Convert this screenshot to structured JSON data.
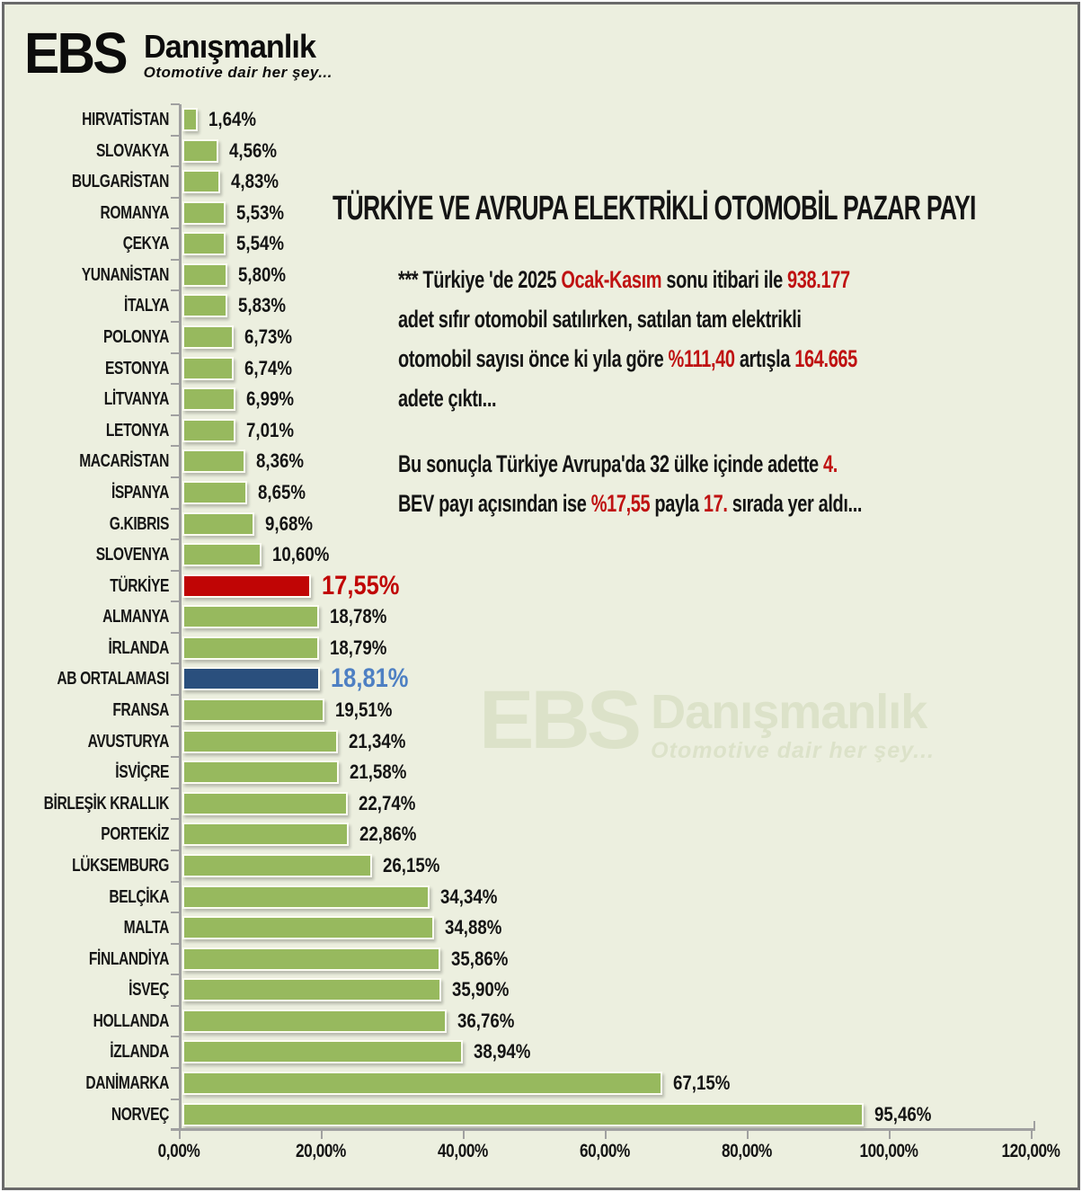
{
  "logo": {
    "mark": "EBS",
    "name": "Danışmanlık",
    "tagline": "Otomotive dair her şey..."
  },
  "title": "TÜRKİYE VE AVRUPA ELEKTRİKLİ OTOMOBİL PAZAR PAYI",
  "paragraphs": [
    {
      "lines": [
        [
          {
            "t": "*** Türkiye 'de 2025 "
          },
          {
            "t": "Ocak-Kasım",
            "red": true
          },
          {
            "t": " sonu itibari ile "
          },
          {
            "t": "938.177",
            "red": true
          }
        ],
        [
          {
            "t": "adet sıfır otomobil satılırken, satılan tam elektrikli"
          }
        ],
        [
          {
            "t": "otomobil sayısı önce ki yıla göre "
          },
          {
            "t": "%111,40",
            "red": true
          },
          {
            "t": " artışla "
          },
          {
            "t": "164.665",
            "red": true
          }
        ],
        [
          {
            "t": "adete çıktı..."
          }
        ]
      ]
    },
    {
      "lines": [
        [
          {
            "t": "Bu sonuçla Türkiye Avrupa'da 32 ülke içinde adette "
          },
          {
            "t": "4.",
            "red": true
          }
        ],
        [
          {
            "t": "BEV payı açısından ise "
          },
          {
            "t": "%17,55",
            "red": true
          },
          {
            "t": " payla "
          },
          {
            "t": "17.",
            "red": true
          },
          {
            "t": " sırada yer aldı..."
          }
        ]
      ]
    }
  ],
  "watermark": {
    "mark": "EBS",
    "name": "Danışmanlık",
    "tagline": "Otomotive dair her şey..."
  },
  "chart_data": {
    "type": "bar",
    "orientation": "horizontal",
    "title": "TÜRKİYE VE AVRUPA ELEKTRİKLİ OTOMOBİL PAZAR PAYI",
    "xlim": [
      0,
      120
    ],
    "x_tick_values": [
      0,
      20,
      40,
      60,
      80,
      100,
      120
    ],
    "x_tick_labels": [
      "0,00%",
      "20,00%",
      "40,00%",
      "60,00%",
      "80,00%",
      "100,00%",
      "120,00%"
    ],
    "grid": false,
    "legend": false,
    "colors": {
      "green": "#97b95e",
      "red": "#c00505",
      "blue": "#2a4f7d",
      "red_text": "#c00505",
      "blue_text": "#4e80c3",
      "black_text": "#141414"
    },
    "rows": [
      {
        "label": "HIRVATİSTAN",
        "value": 1.64,
        "display": "1,64%",
        "kind": "green"
      },
      {
        "label": "SLOVAKYA",
        "value": 4.56,
        "display": "4,56%",
        "kind": "green"
      },
      {
        "label": "BULGARİSTAN",
        "value": 4.83,
        "display": "4,83%",
        "kind": "green"
      },
      {
        "label": "ROMANYA",
        "value": 5.53,
        "display": "5,53%",
        "kind": "green"
      },
      {
        "label": "ÇEKYA",
        "value": 5.54,
        "display": "5,54%",
        "kind": "green"
      },
      {
        "label": "YUNANİSTAN",
        "value": 5.8,
        "display": "5,80%",
        "kind": "green"
      },
      {
        "label": "İTALYA",
        "value": 5.83,
        "display": "5,83%",
        "kind": "green"
      },
      {
        "label": "POLONYA",
        "value": 6.73,
        "display": "6,73%",
        "kind": "green"
      },
      {
        "label": "ESTONYA",
        "value": 6.74,
        "display": "6,74%",
        "kind": "green"
      },
      {
        "label": "LİTVANYA",
        "value": 6.99,
        "display": "6,99%",
        "kind": "green"
      },
      {
        "label": "LETONYA",
        "value": 7.01,
        "display": "7,01%",
        "kind": "green"
      },
      {
        "label": "MACARİSTAN",
        "value": 8.36,
        "display": "8,36%",
        "kind": "green"
      },
      {
        "label": "İSPANYA",
        "value": 8.65,
        "display": "8,65%",
        "kind": "green"
      },
      {
        "label": "G.KIBRIS",
        "value": 9.68,
        "display": "9,68%",
        "kind": "green"
      },
      {
        "label": "SLOVENYA",
        "value": 10.6,
        "display": "10,60%",
        "kind": "green"
      },
      {
        "label": "TÜRKİYE",
        "value": 17.55,
        "display": "17,55%",
        "kind": "red"
      },
      {
        "label": "ALMANYA",
        "value": 18.78,
        "display": "18,78%",
        "kind": "green"
      },
      {
        "label": "İRLANDA",
        "value": 18.79,
        "display": "18,79%",
        "kind": "green"
      },
      {
        "label": "AB ORTALAMASI",
        "value": 18.81,
        "display": "18,81%",
        "kind": "blue"
      },
      {
        "label": "FRANSA",
        "value": 19.51,
        "display": "19,51%",
        "kind": "green"
      },
      {
        "label": "AVUSTURYA",
        "value": 21.34,
        "display": "21,34%",
        "kind": "green"
      },
      {
        "label": "İSVİÇRE",
        "value": 21.58,
        "display": "21,58%",
        "kind": "green"
      },
      {
        "label": "BİRLEŞİK KRALLIK",
        "value": 22.74,
        "display": "22,74%",
        "kind": "green"
      },
      {
        "label": "PORTEKİZ",
        "value": 22.86,
        "display": "22,86%",
        "kind": "green"
      },
      {
        "label": "LÜKSEMBURG",
        "value": 26.15,
        "display": "26,15%",
        "kind": "green"
      },
      {
        "label": "BELÇİKA",
        "value": 34.34,
        "display": "34,34%",
        "kind": "green"
      },
      {
        "label": "MALTA",
        "value": 34.88,
        "display": "34,88%",
        "kind": "green"
      },
      {
        "label": "FİNLANDİYA",
        "value": 35.86,
        "display": "35,86%",
        "kind": "green"
      },
      {
        "label": "İSVEÇ",
        "value": 35.9,
        "display": "35,90%",
        "kind": "green"
      },
      {
        "label": "HOLLANDA",
        "value": 36.76,
        "display": "36,76%",
        "kind": "green"
      },
      {
        "label": "İZLANDA",
        "value": 38.94,
        "display": "38,94%",
        "kind": "green"
      },
      {
        "label": "DANİMARKA",
        "value": 67.15,
        "display": "67,15%",
        "kind": "green"
      },
      {
        "label": "NORVEÇ",
        "value": 95.46,
        "display": "95,46%",
        "kind": "green"
      }
    ]
  }
}
